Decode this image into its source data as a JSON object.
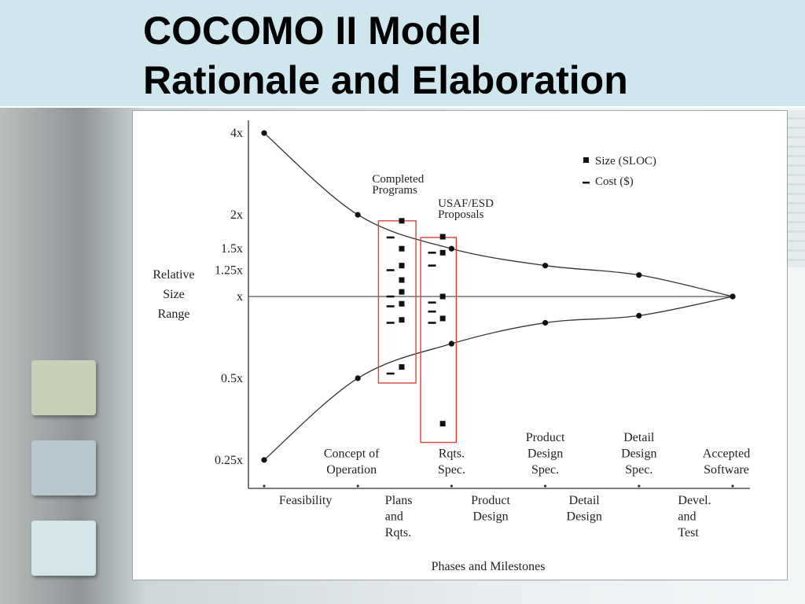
{
  "slide": {
    "title_line1": "COCOMO II Model",
    "title_line2": "Rationale and Elaboration"
  },
  "chart_data": {
    "type": "line",
    "title": "",
    "xlabel": "Phases and Milestones",
    "ylabel_lines": [
      "Relative",
      "Size",
      "Range"
    ],
    "y_scale": "log",
    "y_ticks": [
      {
        "label": "4x",
        "value": 4
      },
      {
        "label": "2x",
        "value": 2
      },
      {
        "label": "1.5x",
        "value": 1.5
      },
      {
        "label": "1.25x",
        "value": 1.25
      },
      {
        "label": "x",
        "value": 1
      },
      {
        "label": "0.5x",
        "value": 0.5
      },
      {
        "label": "0.25x",
        "value": 0.25
      }
    ],
    "milestones": [
      {
        "lines": [
          "Concept of",
          "Operation"
        ],
        "pos": 1
      },
      {
        "lines": [
          "Rqts.",
          "Spec."
        ],
        "pos": 2
      },
      {
        "lines": [
          "Product",
          "Design",
          "Spec."
        ],
        "pos": 3
      },
      {
        "lines": [
          "Detail",
          "Design",
          "Spec."
        ],
        "pos": 4
      },
      {
        "lines": [
          "Accepted",
          "Software"
        ],
        "pos": 5
      }
    ],
    "phases": [
      {
        "lines": [
          "Feasibility"
        ],
        "pos": 0.5
      },
      {
        "lines": [
          "Plans",
          "and",
          "Rqts."
        ],
        "pos": 1.5
      },
      {
        "lines": [
          "Product",
          "Design"
        ],
        "pos": 2.5
      },
      {
        "lines": [
          "Detail",
          "Design"
        ],
        "pos": 3.5
      },
      {
        "lines": [
          "Devel.",
          "and",
          "Test"
        ],
        "pos": 4.5
      }
    ],
    "series": [
      {
        "x": [
          0,
          1,
          2,
          3,
          4,
          5
        ],
        "y": [
          4,
          2,
          1.5,
          1.3,
          1.2,
          1
        ]
      },
      {
        "x": [
          0,
          1,
          2,
          3,
          4,
          5
        ],
        "y": [
          0.25,
          0.5,
          0.67,
          0.8,
          0.85,
          1
        ]
      }
    ],
    "legend": {
      "placement": "top-right",
      "items": [
        {
          "label": "Size   (SLOC)",
          "marker": "square"
        },
        {
          "label": "Cost  ($)",
          "marker": "dash"
        }
      ]
    },
    "annotations": [
      {
        "lines": [
          "Completed",
          "Programs"
        ],
        "x_range": [
          1.22,
          1.62
        ],
        "y_range": [
          0.48,
          1.9
        ],
        "size_points": [
          1.9,
          1.5,
          1.3,
          1.15,
          1.04,
          0.94,
          0.82,
          0.55
        ],
        "cost_points": [
          1.65,
          1.25,
          1.0,
          0.92,
          0.8,
          0.52
        ]
      },
      {
        "lines": [
          "USAF/ESD",
          "Proposals"
        ],
        "x_range": [
          1.67,
          2.05
        ],
        "y_range": [
          0.29,
          1.65
        ],
        "size_points": [
          1.66,
          1.45,
          1.0,
          0.83,
          0.34
        ],
        "cost_points": [
          1.45,
          1.3,
          0.95,
          0.88,
          0.8
        ]
      }
    ]
  }
}
